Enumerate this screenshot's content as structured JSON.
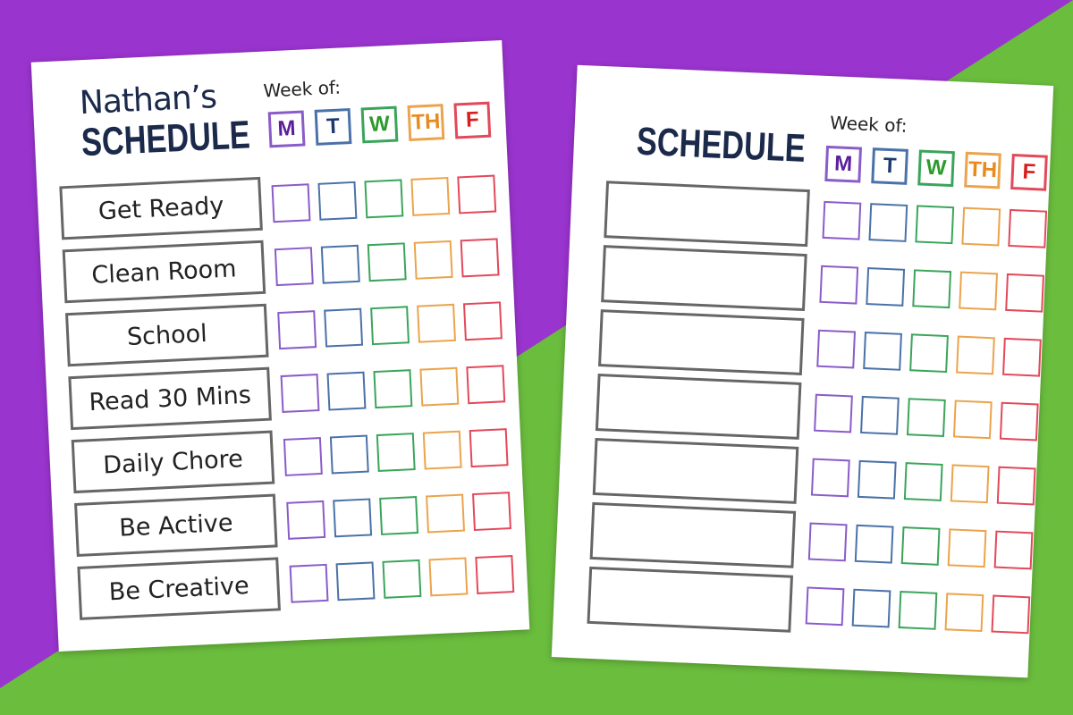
{
  "colors": {
    "purple_bg": "#9a34cf",
    "green_bg": "#6bbd3e",
    "day_colors": [
      "#8a5cc9",
      "#4a72a8",
      "#3aa55a",
      "#eba44c",
      "#e2495a"
    ],
    "day_text": [
      "#5b1f9b",
      "#1c3a6e",
      "#2e9a2e",
      "#e88a1e",
      "#d91c1c"
    ]
  },
  "left_sheet": {
    "name": "Nathan’s",
    "title": "SCHEDULE",
    "week_label": "Week of:",
    "days": [
      "M",
      "T",
      "W",
      "TH",
      "F"
    ],
    "tasks": [
      "Get Ready",
      "Clean Room",
      "School",
      "Read 30 Mins",
      "Daily Chore",
      "Be Active",
      "Be Creative"
    ]
  },
  "right_sheet": {
    "title": "SCHEDULE",
    "week_label": "Week of:",
    "days": [
      "M",
      "T",
      "W",
      "TH",
      "F"
    ],
    "tasks": [
      "",
      "",
      "",
      "",
      "",
      "",
      ""
    ]
  }
}
